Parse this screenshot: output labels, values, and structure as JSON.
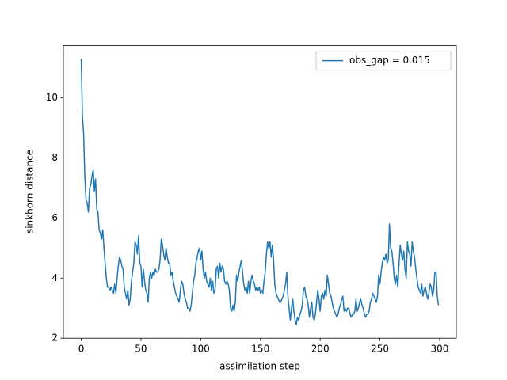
{
  "chart_data": {
    "type": "line",
    "xlabel": "assimilation step",
    "ylabel": "sinkhorn distance",
    "xlim": [
      -14.95,
      313.95
    ],
    "ylim": [
      2.0,
      11.74
    ],
    "xticks": [
      0,
      50,
      100,
      150,
      200,
      250,
      300
    ],
    "yticks": [
      2,
      4,
      6,
      8,
      10
    ],
    "legend": "upper right",
    "x": [
      0,
      1,
      2,
      3,
      4,
      5,
      6,
      7,
      8,
      9,
      10,
      11,
      12,
      13,
      14,
      15,
      16,
      17,
      18,
      19,
      20,
      21,
      22,
      23,
      24,
      25,
      26,
      27,
      28,
      29,
      30,
      31,
      32,
      33,
      34,
      35,
      36,
      37,
      38,
      39,
      40,
      41,
      42,
      43,
      44,
      45,
      46,
      47,
      48,
      49,
      50,
      51,
      52,
      53,
      54,
      55,
      56,
      57,
      58,
      59,
      60,
      61,
      62,
      63,
      64,
      65,
      66,
      67,
      68,
      69,
      70,
      71,
      72,
      73,
      74,
      75,
      76,
      77,
      78,
      79,
      80,
      81,
      82,
      83,
      84,
      85,
      86,
      87,
      88,
      89,
      90,
      91,
      92,
      93,
      94,
      95,
      96,
      97,
      98,
      99,
      100,
      101,
      102,
      103,
      104,
      105,
      106,
      107,
      108,
      109,
      110,
      111,
      112,
      113,
      114,
      115,
      116,
      117,
      118,
      119,
      120,
      121,
      122,
      123,
      124,
      125,
      126,
      127,
      128,
      129,
      130,
      131,
      132,
      133,
      134,
      135,
      136,
      137,
      138,
      139,
      140,
      141,
      142,
      143,
      144,
      145,
      146,
      147,
      148,
      149,
      150,
      151,
      152,
      153,
      154,
      155,
      156,
      157,
      158,
      159,
      160,
      161,
      162,
      163,
      164,
      165,
      166,
      167,
      168,
      169,
      170,
      171,
      172,
      173,
      174,
      175,
      176,
      177,
      178,
      179,
      180,
      181,
      182,
      183,
      184,
      185,
      186,
      187,
      188,
      189,
      190,
      191,
      192,
      193,
      194,
      195,
      196,
      197,
      198,
      199,
      200,
      201,
      202,
      203,
      204,
      205,
      206,
      207,
      208,
      209,
      210,
      211,
      212,
      213,
      214,
      215,
      216,
      217,
      218,
      219,
      220,
      221,
      222,
      223,
      224,
      225,
      226,
      227,
      228,
      229,
      230,
      231,
      232,
      233,
      234,
      235,
      236,
      237,
      238,
      239,
      240,
      241,
      242,
      243,
      244,
      245,
      246,
      247,
      248,
      249,
      250,
      251,
      252,
      253,
      254,
      255,
      256,
      257,
      258,
      259,
      260,
      261,
      262,
      263,
      264,
      265,
      266,
      267,
      268,
      269,
      270,
      271,
      272,
      273,
      274,
      275,
      276,
      277,
      278,
      279,
      280,
      281,
      282,
      283,
      284,
      285,
      286,
      287,
      288,
      289,
      290,
      291,
      292,
      293,
      294,
      295,
      296,
      297,
      298,
      299
    ],
    "series": [
      {
        "name": "obs_gap = 0.015",
        "color": "#1f77b4",
        "values": [
          11.3,
          9.4,
          8.8,
          7.4,
          6.6,
          6.5,
          6.2,
          7.0,
          7.1,
          7.4,
          7.6,
          6.9,
          7.3,
          6.3,
          6.2,
          5.6,
          5.5,
          5.3,
          5.6,
          5.0,
          4.5,
          4.0,
          3.7,
          3.7,
          3.6,
          3.7,
          3.6,
          3.5,
          3.8,
          3.5,
          4.0,
          4.4,
          4.7,
          4.6,
          4.4,
          4.3,
          3.7,
          3.5,
          3.3,
          3.6,
          3.1,
          3.3,
          3.9,
          4.2,
          4.5,
          5.2,
          5.1,
          4.8,
          5.4,
          4.5,
          4.4,
          3.7,
          4.3,
          3.9,
          3.6,
          3.5,
          3.2,
          4.0,
          4.2,
          4.0,
          4.2,
          4.1,
          4.3,
          4.2,
          4.2,
          4.3,
          4.6,
          5.3,
          5.1,
          4.8,
          4.6,
          5.0,
          4.7,
          4.5,
          4.5,
          4.1,
          4.2,
          3.9,
          3.7,
          3.5,
          3.4,
          3.3,
          3.2,
          3.6,
          3.9,
          3.8,
          3.5,
          3.3,
          3.2,
          3.0,
          3.0,
          2.9,
          3.1,
          3.5,
          3.9,
          4.1,
          4.5,
          4.7,
          4.9,
          5.0,
          4.6,
          4.9,
          4.3,
          4.0,
          4.2,
          3.9,
          3.8,
          3.7,
          4.0,
          3.6,
          3.9,
          3.5,
          3.6,
          4.3,
          4.4,
          4.0,
          4.5,
          4.2,
          4.4,
          4.3,
          3.9,
          3.8,
          3.9,
          3.8,
          3.6,
          3.0,
          2.9,
          3.1,
          2.9,
          3.2,
          4.1,
          3.9,
          4.2,
          4.4,
          4.6,
          4.2,
          3.8,
          3.6,
          3.7,
          3.5,
          3.9,
          3.5,
          3.9,
          4.1,
          3.9,
          3.8,
          3.6,
          3.7,
          3.6,
          3.7,
          3.5,
          3.6,
          3.5,
          3.9,
          4.2,
          4.8,
          5.2,
          5.0,
          5.2,
          4.7,
          5.1,
          4.6,
          3.8,
          3.5,
          3.4,
          3.3,
          3.2,
          3.2,
          3.3,
          3.4,
          3.6,
          3.8,
          4.2,
          3.4,
          3.0,
          2.6,
          3.0,
          3.3,
          2.9,
          2.6,
          2.45,
          2.7,
          2.6,
          2.8,
          2.9,
          3.1,
          3.6,
          3.7,
          3.4,
          3.3,
          3.1,
          2.7,
          3.0,
          3.2,
          2.7,
          2.6,
          2.8,
          3.2,
          3.6,
          3.3,
          2.9,
          3.4,
          3.5,
          3.3,
          3.6,
          3.4,
          4.1,
          3.8,
          3.5,
          3.4,
          3.2,
          3.0,
          2.9,
          2.8,
          2.7,
          2.8,
          3.0,
          3.1,
          3.3,
          3.4,
          2.9,
          3.0,
          2.9,
          3.0,
          3.0,
          2.8,
          2.7,
          2.8,
          2.8,
          2.9,
          3.3,
          2.9,
          3.0,
          3.2,
          3.3,
          3.1,
          3.0,
          2.8,
          2.7,
          2.8,
          2.8,
          2.9,
          3.2,
          3.3,
          3.5,
          3.4,
          3.3,
          3.2,
          3.4,
          4.1,
          3.8,
          4.2,
          4.5,
          4.7,
          4.6,
          4.8,
          4.5,
          4.6,
          5.8,
          5.0,
          4.9,
          4.5,
          4.0,
          3.8,
          4.1,
          3.7,
          4.5,
          5.1,
          4.8,
          4.6,
          4.9,
          4.3,
          4.0,
          5.2,
          4.9,
          4.8,
          4.4,
          5.2,
          4.9,
          4.7,
          4.3,
          4.0,
          3.7,
          3.6,
          3.5,
          3.8,
          3.4,
          3.6,
          3.7,
          3.5,
          3.3,
          3.5,
          3.8,
          3.7,
          3.4,
          3.6,
          4.2,
          4.2,
          3.4,
          3.1
        ]
      }
    ]
  }
}
